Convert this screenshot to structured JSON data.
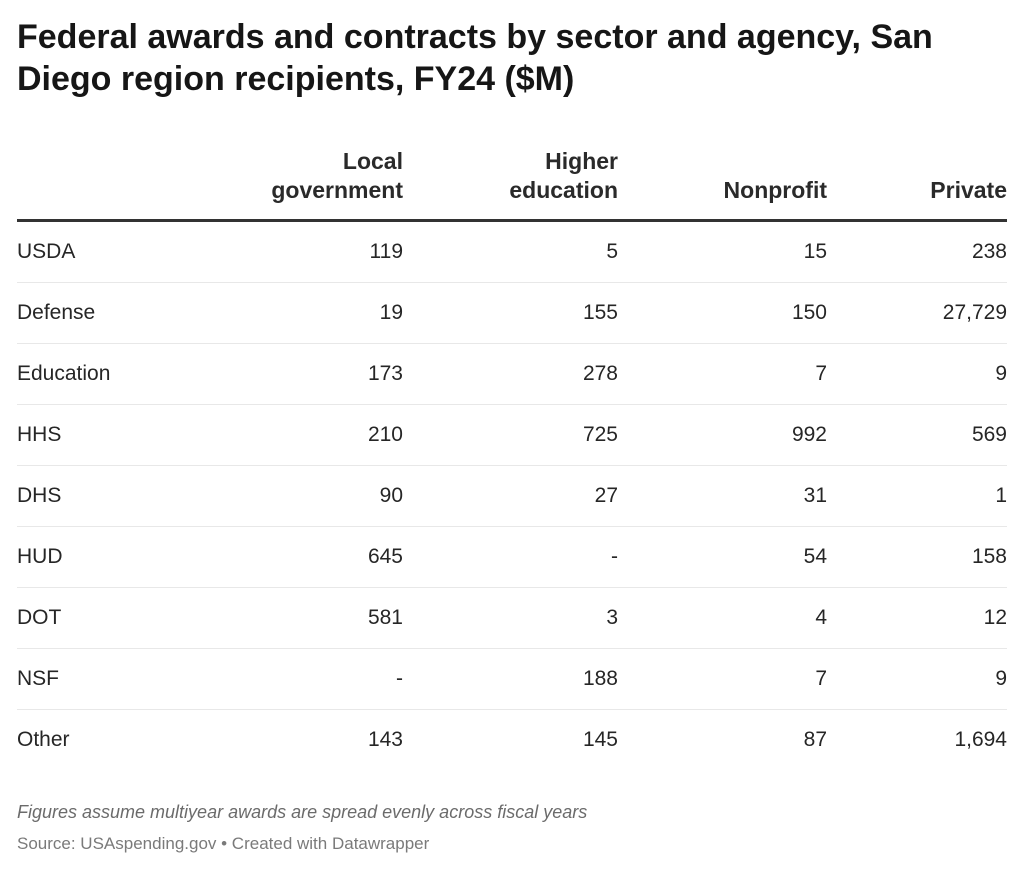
{
  "chart_data": {
    "type": "table",
    "title": "Federal awards and contracts by sector and agency, San Diego region recipients, FY24 ($M)",
    "columns": [
      "",
      "Local government",
      "Higher education",
      "Nonprofit",
      "Private"
    ],
    "rows": [
      {
        "agency": "USDA",
        "local_government": "119",
        "higher_education": "5",
        "nonprofit": "15",
        "private": "238"
      },
      {
        "agency": "Defense",
        "local_government": "19",
        "higher_education": "155",
        "nonprofit": "150",
        "private": "27,729"
      },
      {
        "agency": "Education",
        "local_government": "173",
        "higher_education": "278",
        "nonprofit": "7",
        "private": "9"
      },
      {
        "agency": "HHS",
        "local_government": "210",
        "higher_education": "725",
        "nonprofit": "992",
        "private": "569"
      },
      {
        "agency": "DHS",
        "local_government": "90",
        "higher_education": "27",
        "nonprofit": "31",
        "private": "1"
      },
      {
        "agency": "HUD",
        "local_government": "645",
        "higher_education": "-",
        "nonprofit": "54",
        "private": "158"
      },
      {
        "agency": "DOT",
        "local_government": "581",
        "higher_education": "3",
        "nonprofit": "4",
        "private": "12"
      },
      {
        "agency": "NSF",
        "local_government": "-",
        "higher_education": "188",
        "nonprofit": "7",
        "private": "9"
      },
      {
        "agency": "Other",
        "local_government": "143",
        "higher_education": "145",
        "nonprofit": "87",
        "private": "1,694"
      }
    ],
    "notes": "Figures assume multiyear awards are spread evenly across fiscal years",
    "source": "Source: USAspending.gov • Created with Datawrapper"
  },
  "header_labels": {
    "local_government_line1": "Local",
    "local_government_line2": "government",
    "higher_education_line1": "Higher",
    "higher_education_line2": "education"
  }
}
